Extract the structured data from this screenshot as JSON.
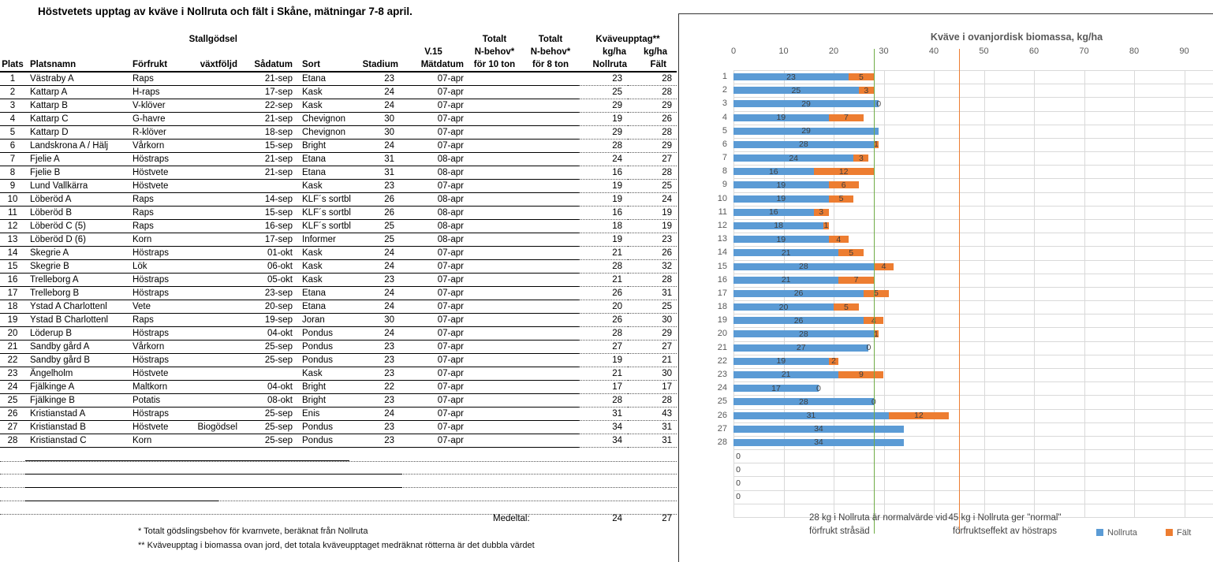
{
  "page_title": "Höstvetets upptag av kväve i Nollruta och fält i Skåne, mätningar 7-8 april.",
  "table": {
    "header": {
      "stallgodsel": "Stallgödsel",
      "totalt_10": "Totalt",
      "totalt_8": "Totalt",
      "kvaveupptag": "Kväveupptag**",
      "v15": "V.15",
      "nbehov_10": "N-behov*",
      "nbehov_8": "N-behov*",
      "kgha_noll": "kg/ha",
      "kgha_falt": "kg/ha",
      "cols": [
        "Plats",
        "Platsnamn",
        "Förfrukt",
        "växtföljd",
        "Sådatum",
        "Sort",
        "Stadium",
        "Mätdatum",
        "för 10 ton",
        "för 8 ton",
        "Nollruta",
        "Fält"
      ]
    },
    "rows": [
      [
        "1",
        "Västraby A",
        "Raps",
        "",
        "21-sep",
        "Etana",
        "23",
        "07-apr",
        "",
        "",
        "23",
        "28"
      ],
      [
        "2",
        "Kattarp A",
        "H-raps",
        "",
        "17-sep",
        "Kask",
        "24",
        "07-apr",
        "",
        "",
        "25",
        "28"
      ],
      [
        "3",
        "Kattarp B",
        "V-klöver",
        "",
        "22-sep",
        "Kask",
        "24",
        "07-apr",
        "",
        "",
        "29",
        "29"
      ],
      [
        "4",
        "Kattarp C",
        "G-havre",
        "",
        "21-sep",
        "Chevignon",
        "30",
        "07-apr",
        "",
        "",
        "19",
        "26"
      ],
      [
        "5",
        "Kattarp D",
        "R-klöver",
        "",
        "18-sep",
        "Chevignon",
        "30",
        "07-apr",
        "",
        "",
        "29",
        "28"
      ],
      [
        "6",
        "Landskrona A / Hälj",
        "Vårkorn",
        "",
        "15-sep",
        "Bright",
        "24",
        "07-apr",
        "",
        "",
        "28",
        "29"
      ],
      [
        "7",
        "Fjelie A",
        "Höstraps",
        "",
        "21-sep",
        "Etana",
        "31",
        "08-apr",
        "",
        "",
        "24",
        "27"
      ],
      [
        "8",
        "Fjelie B",
        "Höstvete",
        "",
        "21-sep",
        "Etana",
        "31",
        "08-apr",
        "",
        "",
        "16",
        "28"
      ],
      [
        "9",
        "Lund Vallkärra",
        "Höstvete",
        "",
        "",
        "Kask",
        "23",
        "07-apr",
        "",
        "",
        "19",
        "25"
      ],
      [
        "10",
        "Löberöd A",
        "Raps",
        "",
        "14-sep",
        "KLF´s sortbl",
        "26",
        "08-apr",
        "",
        "",
        "19",
        "24"
      ],
      [
        "11",
        "Löberöd B",
        "Raps",
        "",
        "15-sep",
        "KLF´s sortbl",
        "26",
        "08-apr",
        "",
        "",
        "16",
        "19"
      ],
      [
        "12",
        "Löberöd C (5)",
        "Raps",
        "",
        "16-sep",
        "KLF´s sortbl",
        "25",
        "08-apr",
        "",
        "",
        "18",
        "19"
      ],
      [
        "13",
        "Löberöd D (6)",
        "Korn",
        "",
        "17-sep",
        "Informer",
        "25",
        "08-apr",
        "",
        "",
        "19",
        "23"
      ],
      [
        "14",
        "Skegrie A",
        "Höstraps",
        "",
        "01-okt",
        "Kask",
        "24",
        "07-apr",
        "",
        "",
        "21",
        "26"
      ],
      [
        "15",
        "Skegrie B",
        "Lök",
        "",
        "06-okt",
        "Kask",
        "24",
        "07-apr",
        "",
        "",
        "28",
        "32"
      ],
      [
        "16",
        "Trelleborg A",
        "Höstraps",
        "",
        "05-okt",
        "Kask",
        "23",
        "07-apr",
        "",
        "",
        "21",
        "28"
      ],
      [
        "17",
        "Trelleborg B",
        "Höstraps",
        "",
        "23-sep",
        "Etana",
        "24",
        "07-apr",
        "",
        "",
        "26",
        "31"
      ],
      [
        "18",
        "Ystad A Charlottenl",
        "Vete",
        "",
        "20-sep",
        "Etana",
        "24",
        "07-apr",
        "",
        "",
        "20",
        "25"
      ],
      [
        "19",
        "Ystad B Charlottenl",
        "Raps",
        "",
        "19-sep",
        "Joran",
        "30",
        "07-apr",
        "",
        "",
        "26",
        "30"
      ],
      [
        "20",
        "Löderup B",
        "Höstraps",
        "",
        "04-okt",
        "Pondus",
        "24",
        "07-apr",
        "",
        "",
        "28",
        "29"
      ],
      [
        "21",
        "Sandby gård A",
        "Vårkorn",
        "",
        "25-sep",
        "Pondus",
        "23",
        "07-apr",
        "",
        "",
        "27",
        "27"
      ],
      [
        "22",
        "Sandby gård B",
        "Höstraps",
        "",
        "25-sep",
        "Pondus",
        "23",
        "07-apr",
        "",
        "",
        "19",
        "21"
      ],
      [
        "23",
        "Ängelholm",
        "Höstvete",
        "",
        "",
        "Kask",
        "23",
        "07-apr",
        "",
        "",
        "21",
        "30"
      ],
      [
        "24",
        "Fjälkinge A",
        "Maltkorn",
        "",
        "04-okt",
        "Bright",
        "22",
        "07-apr",
        "",
        "",
        "17",
        "17"
      ],
      [
        "25",
        "Fjälkinge B",
        "Potatis",
        "",
        "08-okt",
        "Bright",
        "23",
        "07-apr",
        "",
        "",
        "28",
        "28"
      ],
      [
        "26",
        "Kristianstad A",
        "Höstraps",
        "",
        "25-sep",
        "Enis",
        "24",
        "07-apr",
        "",
        "",
        "31",
        "43"
      ],
      [
        "27",
        "Kristianstad B",
        "Höstvete",
        "Biogödsel",
        "25-sep",
        "Pondus",
        "23",
        "07-apr",
        "",
        "",
        "34",
        "31"
      ],
      [
        "28",
        "Kristianstad C",
        "Korn",
        "",
        "25-sep",
        "Pondus",
        "23",
        "07-apr",
        "",
        "",
        "34",
        "31"
      ]
    ],
    "medeltal": {
      "label": "Medeltal:",
      "nollruta": "24",
      "falt": "27"
    },
    "footnotes": [
      "* Totalt gödslingsbehov för kvarnvete, beräknat från Nollruta",
      "** Kväveupptag i biomassa ovan jord, det totala kväveupptaget medräknat rötterna är det dubbla värdet"
    ]
  },
  "chart_data": {
    "type": "bar",
    "orientation": "horizontal",
    "stacked": true,
    "title": "Kväve i ovanjordisk biomassa, kg/ha",
    "x_ticks": [
      0,
      10,
      20,
      30,
      40,
      50,
      60,
      70,
      80,
      90
    ],
    "xlim": [
      0,
      95
    ],
    "grid": true,
    "legend": [
      "Nollruta",
      "Fält"
    ],
    "legend_position": "bottom-right",
    "colors": {
      "nollruta": "#5B9BD5",
      "falt": "#ED7D31",
      "ref_green": "#70AD47",
      "ref_orange": "#ED7D31",
      "grid": "#D9D9D9",
      "axis_text": "#595959"
    },
    "reference_lines": [
      {
        "value": 28,
        "color": "#70AD47"
      },
      {
        "value": 45,
        "color": "#ED7D31"
      }
    ],
    "annotations": [
      {
        "line1": "28 kg i Nollruta är normalvärde vid",
        "line2": "förfrukt stråsäd"
      },
      {
        "line1": "45 kg i Nollruta ger \"normal\"",
        "line2": "förfruktseffekt av höstraps"
      }
    ],
    "bars": [
      {
        "c": "1",
        "n": 23,
        "nl": "23",
        "f": 5,
        "fl": "5"
      },
      {
        "c": "2",
        "n": 25,
        "nl": "25",
        "f": 3,
        "fl": "3"
      },
      {
        "c": "3",
        "n": 29,
        "nl": "29",
        "f": 0,
        "fl": "0"
      },
      {
        "c": "4",
        "n": 19,
        "nl": "19",
        "f": 7,
        "fl": "7"
      },
      {
        "c": "5",
        "n": 29,
        "nl": "29",
        "f": 0,
        "fl": ""
      },
      {
        "c": "6",
        "n": 28,
        "nl": "28",
        "f": 1,
        "fl": "1"
      },
      {
        "c": "7",
        "n": 24,
        "nl": "24",
        "f": 3,
        "fl": "3"
      },
      {
        "c": "8",
        "n": 16,
        "nl": "16",
        "f": 12,
        "fl": "12"
      },
      {
        "c": "9",
        "n": 19,
        "nl": "19",
        "f": 6,
        "fl": "6"
      },
      {
        "c": "10",
        "n": 19,
        "nl": "19",
        "f": 5,
        "fl": "5"
      },
      {
        "c": "11",
        "n": 16,
        "nl": "16",
        "f": 3,
        "fl": "3"
      },
      {
        "c": "12",
        "n": 18,
        "nl": "18",
        "f": 1,
        "fl": "1"
      },
      {
        "c": "13",
        "n": 19,
        "nl": "19",
        "f": 4,
        "fl": "4"
      },
      {
        "c": "14",
        "n": 21,
        "nl": "21",
        "f": 5,
        "fl": "5"
      },
      {
        "c": "15",
        "n": 28,
        "nl": "28",
        "f": 4,
        "fl": "4"
      },
      {
        "c": "16",
        "n": 21,
        "nl": "21",
        "f": 7,
        "fl": "7"
      },
      {
        "c": "17",
        "n": 26,
        "nl": "26",
        "f": 5,
        "fl": "5"
      },
      {
        "c": "18",
        "n": 20,
        "nl": "20",
        "f": 5,
        "fl": "5"
      },
      {
        "c": "19",
        "n": 26,
        "nl": "26",
        "f": 4,
        "fl": "4"
      },
      {
        "c": "20",
        "n": 28,
        "nl": "28",
        "f": 1,
        "fl": "1"
      },
      {
        "c": "21",
        "n": 27,
        "nl": "27",
        "f": 0,
        "fl": "0"
      },
      {
        "c": "22",
        "n": 19,
        "nl": "19",
        "f": 2,
        "fl": "2"
      },
      {
        "c": "23",
        "n": 21,
        "nl": "21",
        "f": 9,
        "fl": "9"
      },
      {
        "c": "24",
        "n": 17,
        "nl": "17",
        "f": 0,
        "fl": "0"
      },
      {
        "c": "25",
        "n": 28,
        "nl": "28",
        "f": 0,
        "fl": "0"
      },
      {
        "c": "26",
        "n": 31,
        "nl": "31",
        "f": 12,
        "fl": "12"
      },
      {
        "c": "27",
        "n": 34,
        "nl": "34",
        "f": 0,
        "fl": ""
      },
      {
        "c": "28",
        "n": 34,
        "nl": "34",
        "f": 0,
        "fl": ""
      },
      {
        "c": "",
        "n": 0,
        "nl": "0",
        "f": 0,
        "fl": ""
      },
      {
        "c": "",
        "n": 0,
        "nl": "0",
        "f": 0,
        "fl": ""
      },
      {
        "c": "",
        "n": 0,
        "nl": "0",
        "f": 0,
        "fl": ""
      },
      {
        "c": "",
        "n": 0,
        "nl": "0",
        "f": 0,
        "fl": ""
      },
      {
        "c": "",
        "n": 0,
        "nl": "",
        "f": 0,
        "fl": ""
      }
    ]
  }
}
